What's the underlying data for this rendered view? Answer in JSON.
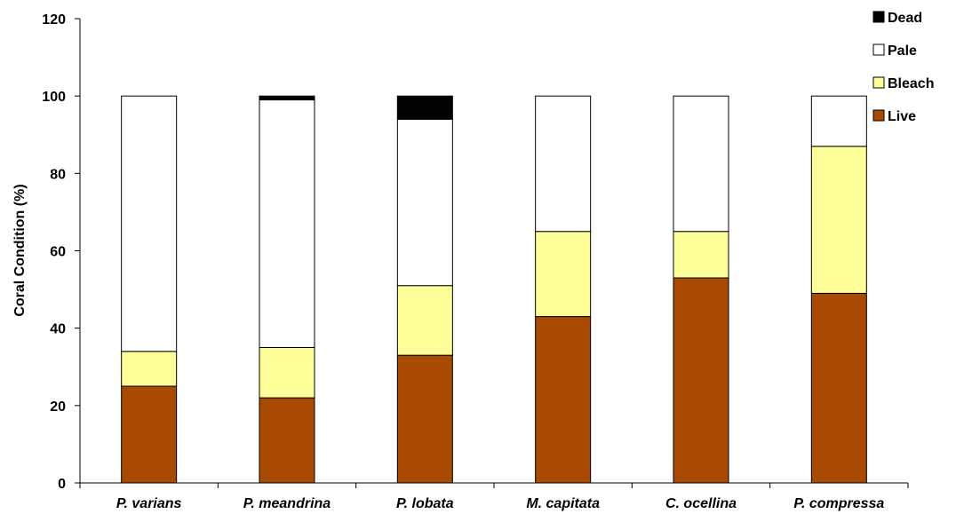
{
  "chart_data": {
    "type": "bar",
    "stacked": true,
    "categories": [
      "P. varians",
      "P. meandrina",
      "P. lobata",
      "M. capitata",
      "C. ocellina",
      "P. compressa"
    ],
    "series": [
      {
        "name": "Live",
        "color": "#A84A02",
        "values": [
          25,
          22,
          33,
          43,
          53,
          49
        ]
      },
      {
        "name": "Bleach",
        "color": "#FFFF99",
        "values": [
          9,
          13,
          18,
          22,
          12,
          38
        ]
      },
      {
        "name": "Pale",
        "color": "#FFFFFF",
        "values": [
          66,
          64,
          43,
          35,
          35,
          13
        ]
      },
      {
        "name": "Dead",
        "color": "#000000",
        "values": [
          0,
          1,
          6,
          0,
          0,
          0
        ]
      }
    ],
    "title": "",
    "xlabel": "",
    "ylabel": "Coral Condition (%)",
    "ylim": [
      0,
      120
    ],
    "yticks": [
      0,
      20,
      40,
      60,
      80,
      100,
      120
    ],
    "grid": false,
    "legend_position": "top-right",
    "legend_order": [
      "Dead",
      "Pale",
      "Bleach",
      "Live"
    ]
  }
}
